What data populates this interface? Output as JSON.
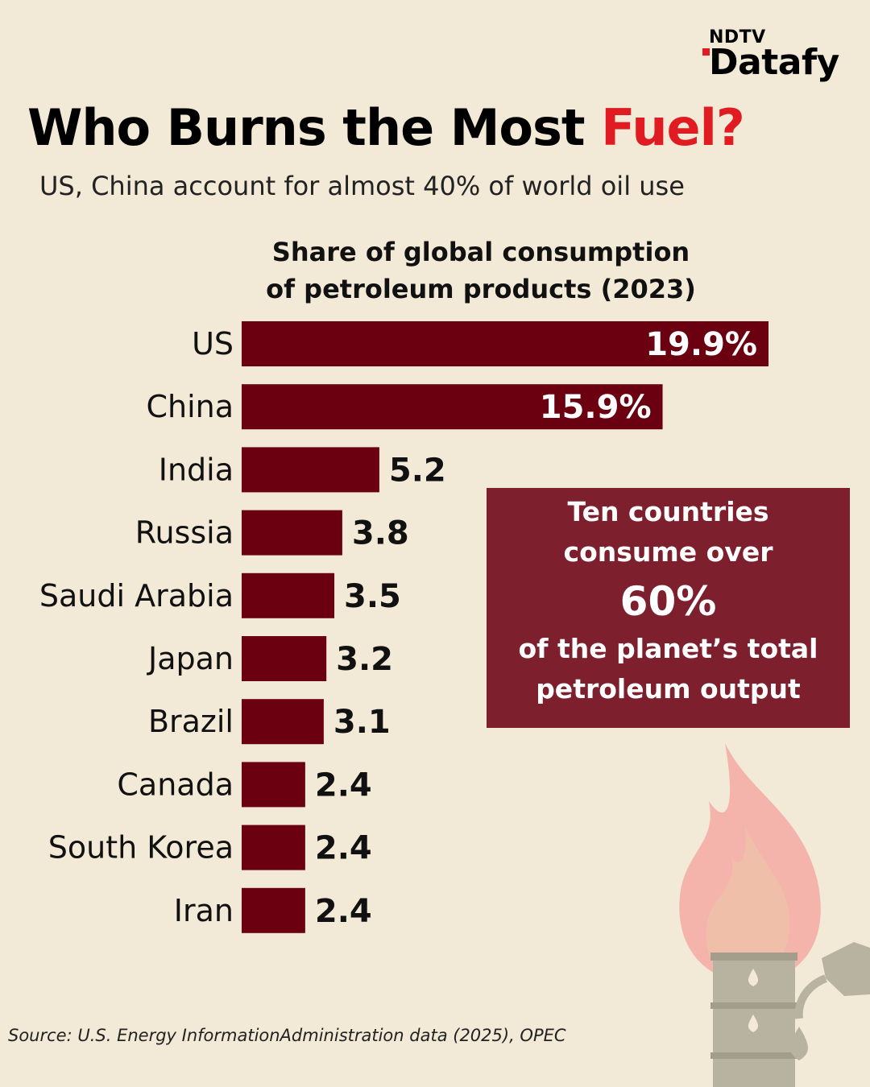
{
  "brand": {
    "line1": "NDTV",
    "line2": "Datafy"
  },
  "header": {
    "title_main": "Who Burns the Most ",
    "title_accent": "Fuel?",
    "subtitle": "US, China account for almost 40% of world oil use"
  },
  "colors": {
    "bar": "#6b0011",
    "accent": "#e01b22",
    "callout_bg": "#7d1f2c",
    "background": "#f2e9d7"
  },
  "chart_data": {
    "type": "bar",
    "orientation": "horizontal",
    "title_line1": "Share of global consumption",
    "title_line2": "of petroleum products (2023)",
    "categories": [
      "US",
      "China",
      "India",
      "Russia",
      "Saudi Arabia",
      "Japan",
      "Brazil",
      "Canada",
      "South Korea",
      "Iran"
    ],
    "values": [
      19.9,
      15.9,
      5.2,
      3.8,
      3.5,
      3.2,
      3.1,
      2.4,
      2.4,
      2.4
    ],
    "labels": [
      "19.9%",
      "15.9%",
      "5.2",
      "3.8",
      "3.5",
      "3.2",
      "3.1",
      "2.4",
      "2.4",
      "2.4"
    ],
    "unit": "%",
    "xlim": [
      0,
      20
    ]
  },
  "callout": {
    "line1": "Ten countries",
    "line2": "consume over",
    "highlight": "60%",
    "line3": "of the planet’s total",
    "line4": "petroleum output"
  },
  "illustration": {
    "icon": "flame-barrel-fuel-nozzle-icon"
  },
  "source": "Source: U.S. Energy InformationAdministration data (2025), OPEC"
}
